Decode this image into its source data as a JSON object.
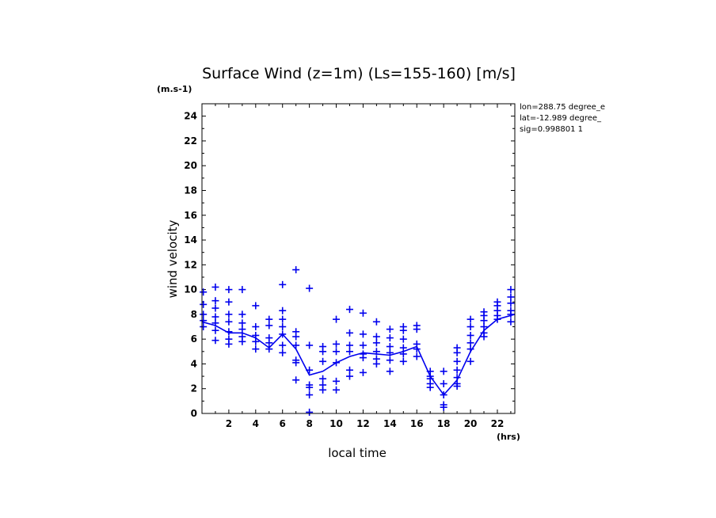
{
  "chart_data": {
    "type": "line",
    "title": "Surface Wind (z=1m) (Ls=155-160) [m/s]",
    "xlabel": "local time",
    "ylabel": "wind velocity",
    "x_unit": "(hrs)",
    "y_unit": "(m.s-1)",
    "xlim": [
      0,
      23.3
    ],
    "ylim": [
      0,
      25
    ],
    "x_ticks": [
      2,
      4,
      6,
      8,
      10,
      12,
      14,
      16,
      18,
      20,
      22
    ],
    "y_ticks": [
      0,
      2,
      4,
      6,
      8,
      10,
      12,
      14,
      16,
      18,
      20,
      22,
      24
    ],
    "grid": false,
    "color": "#0000ee",
    "annotations": [
      "lon=288.75 degree_e",
      "lat=-12.989 degree_",
      "sig=0.998801 1"
    ],
    "series": [
      {
        "style": "line",
        "x": [
          0,
          1,
          2,
          3,
          4,
          5,
          6,
          7,
          8,
          9,
          10,
          11,
          12,
          13,
          14,
          15,
          16,
          17,
          18,
          19,
          20,
          21,
          22,
          23.3
        ],
        "values": [
          7.4,
          7.1,
          6.5,
          6.5,
          6.1,
          5.3,
          6.4,
          5.2,
          3.1,
          3.4,
          4.1,
          4.6,
          4.9,
          4.8,
          4.7,
          5.0,
          5.4,
          3.0,
          1.5,
          2.7,
          5.0,
          6.7,
          7.6,
          8.0
        ]
      },
      {
        "style": "markers",
        "points": [
          [
            0.1,
            9.8
          ],
          [
            0.1,
            8.8
          ],
          [
            0.1,
            8.0
          ],
          [
            0.1,
            7.5
          ],
          [
            0.1,
            7.0
          ],
          [
            1.0,
            10.2
          ],
          [
            1.0,
            9.1
          ],
          [
            1.0,
            8.5
          ],
          [
            1.0,
            7.8
          ],
          [
            1.0,
            7.3
          ],
          [
            1.0,
            6.7
          ],
          [
            1.0,
            5.9
          ],
          [
            2.0,
            10.0
          ],
          [
            2.0,
            9.0
          ],
          [
            2.0,
            8.0
          ],
          [
            2.0,
            7.4
          ],
          [
            2.0,
            6.6
          ],
          [
            2.0,
            6.0
          ],
          [
            2.0,
            5.6
          ],
          [
            3.0,
            10.0
          ],
          [
            3.0,
            8.0
          ],
          [
            3.0,
            7.3
          ],
          [
            3.0,
            6.8
          ],
          [
            3.0,
            6.2
          ],
          [
            3.0,
            5.8
          ],
          [
            4.0,
            8.7
          ],
          [
            4.0,
            7.0
          ],
          [
            4.0,
            6.3
          ],
          [
            4.0,
            5.8
          ],
          [
            4.0,
            5.2
          ],
          [
            5.0,
            7.6
          ],
          [
            5.0,
            7.1
          ],
          [
            5.0,
            6.1
          ],
          [
            5.0,
            5.7
          ],
          [
            5.0,
            5.2
          ],
          [
            6.0,
            10.4
          ],
          [
            6.0,
            8.3
          ],
          [
            6.0,
            7.6
          ],
          [
            6.0,
            7.0
          ],
          [
            6.0,
            6.4
          ],
          [
            6.0,
            5.5
          ],
          [
            6.0,
            4.9
          ],
          [
            7.0,
            11.6
          ],
          [
            7.0,
            6.6
          ],
          [
            7.0,
            6.2
          ],
          [
            7.0,
            5.5
          ],
          [
            7.0,
            4.3
          ],
          [
            7.0,
            4.1
          ],
          [
            7.0,
            2.7
          ],
          [
            8.0,
            10.1
          ],
          [
            8.0,
            5.5
          ],
          [
            8.0,
            3.5
          ],
          [
            8.0,
            2.3
          ],
          [
            8.0,
            2.1
          ],
          [
            8.0,
            1.5
          ],
          [
            8.0,
            0.1
          ],
          [
            9.0,
            5.4
          ],
          [
            9.0,
            5.0
          ],
          [
            9.0,
            4.2
          ],
          [
            9.0,
            2.8
          ],
          [
            9.0,
            2.3
          ],
          [
            9.0,
            1.9
          ],
          [
            10.0,
            7.6
          ],
          [
            10.0,
            5.6
          ],
          [
            10.0,
            5.0
          ],
          [
            10.0,
            4.1
          ],
          [
            10.0,
            2.6
          ],
          [
            10.0,
            1.9
          ],
          [
            11.0,
            8.4
          ],
          [
            11.0,
            6.5
          ],
          [
            11.0,
            5.5
          ],
          [
            11.0,
            5.0
          ],
          [
            11.0,
            3.5
          ],
          [
            11.0,
            3.0
          ],
          [
            12.0,
            8.1
          ],
          [
            12.0,
            6.4
          ],
          [
            12.0,
            5.5
          ],
          [
            12.0,
            4.8
          ],
          [
            12.0,
            4.5
          ],
          [
            12.0,
            3.3
          ],
          [
            13.0,
            7.4
          ],
          [
            13.0,
            6.2
          ],
          [
            13.0,
            5.7
          ],
          [
            13.0,
            5.0
          ],
          [
            13.0,
            4.4
          ],
          [
            13.0,
            4.0
          ],
          [
            14.0,
            6.8
          ],
          [
            14.0,
            6.1
          ],
          [
            14.0,
            5.4
          ],
          [
            14.0,
            4.9
          ],
          [
            14.0,
            4.3
          ],
          [
            14.0,
            3.4
          ],
          [
            15.0,
            7.0
          ],
          [
            15.0,
            6.7
          ],
          [
            15.0,
            6.0
          ],
          [
            15.0,
            5.3
          ],
          [
            15.0,
            4.8
          ],
          [
            15.0,
            4.2
          ],
          [
            16.0,
            7.1
          ],
          [
            16.0,
            6.8
          ],
          [
            16.0,
            5.6
          ],
          [
            16.0,
            5.2
          ],
          [
            16.0,
            4.6
          ],
          [
            17.0,
            3.4
          ],
          [
            17.0,
            3.0
          ],
          [
            17.0,
            2.8
          ],
          [
            17.0,
            2.4
          ],
          [
            17.0,
            2.1
          ],
          [
            18.0,
            3.4
          ],
          [
            18.0,
            2.4
          ],
          [
            18.0,
            1.5
          ],
          [
            18.0,
            0.7
          ],
          [
            18.0,
            0.5
          ],
          [
            19.0,
            5.3
          ],
          [
            19.0,
            4.9
          ],
          [
            19.0,
            4.2
          ],
          [
            19.0,
            3.5
          ],
          [
            19.0,
            2.9
          ],
          [
            19.0,
            2.4
          ],
          [
            19.0,
            2.2
          ],
          [
            20.0,
            7.6
          ],
          [
            20.0,
            7.0
          ],
          [
            20.0,
            6.3
          ],
          [
            20.0,
            5.7
          ],
          [
            20.0,
            5.2
          ],
          [
            20.0,
            4.2
          ],
          [
            21.0,
            8.2
          ],
          [
            21.0,
            7.9
          ],
          [
            21.0,
            7.5
          ],
          [
            21.0,
            7.0
          ],
          [
            21.0,
            6.5
          ],
          [
            21.0,
            6.2
          ],
          [
            22.0,
            9.0
          ],
          [
            22.0,
            8.7
          ],
          [
            22.0,
            8.3
          ],
          [
            22.0,
            7.9
          ],
          [
            22.0,
            7.6
          ],
          [
            23.0,
            10.0
          ],
          [
            23.0,
            9.4
          ],
          [
            23.0,
            8.9
          ],
          [
            23.0,
            8.3
          ],
          [
            23.0,
            8.0
          ],
          [
            23.0,
            7.4
          ]
        ]
      }
    ]
  }
}
